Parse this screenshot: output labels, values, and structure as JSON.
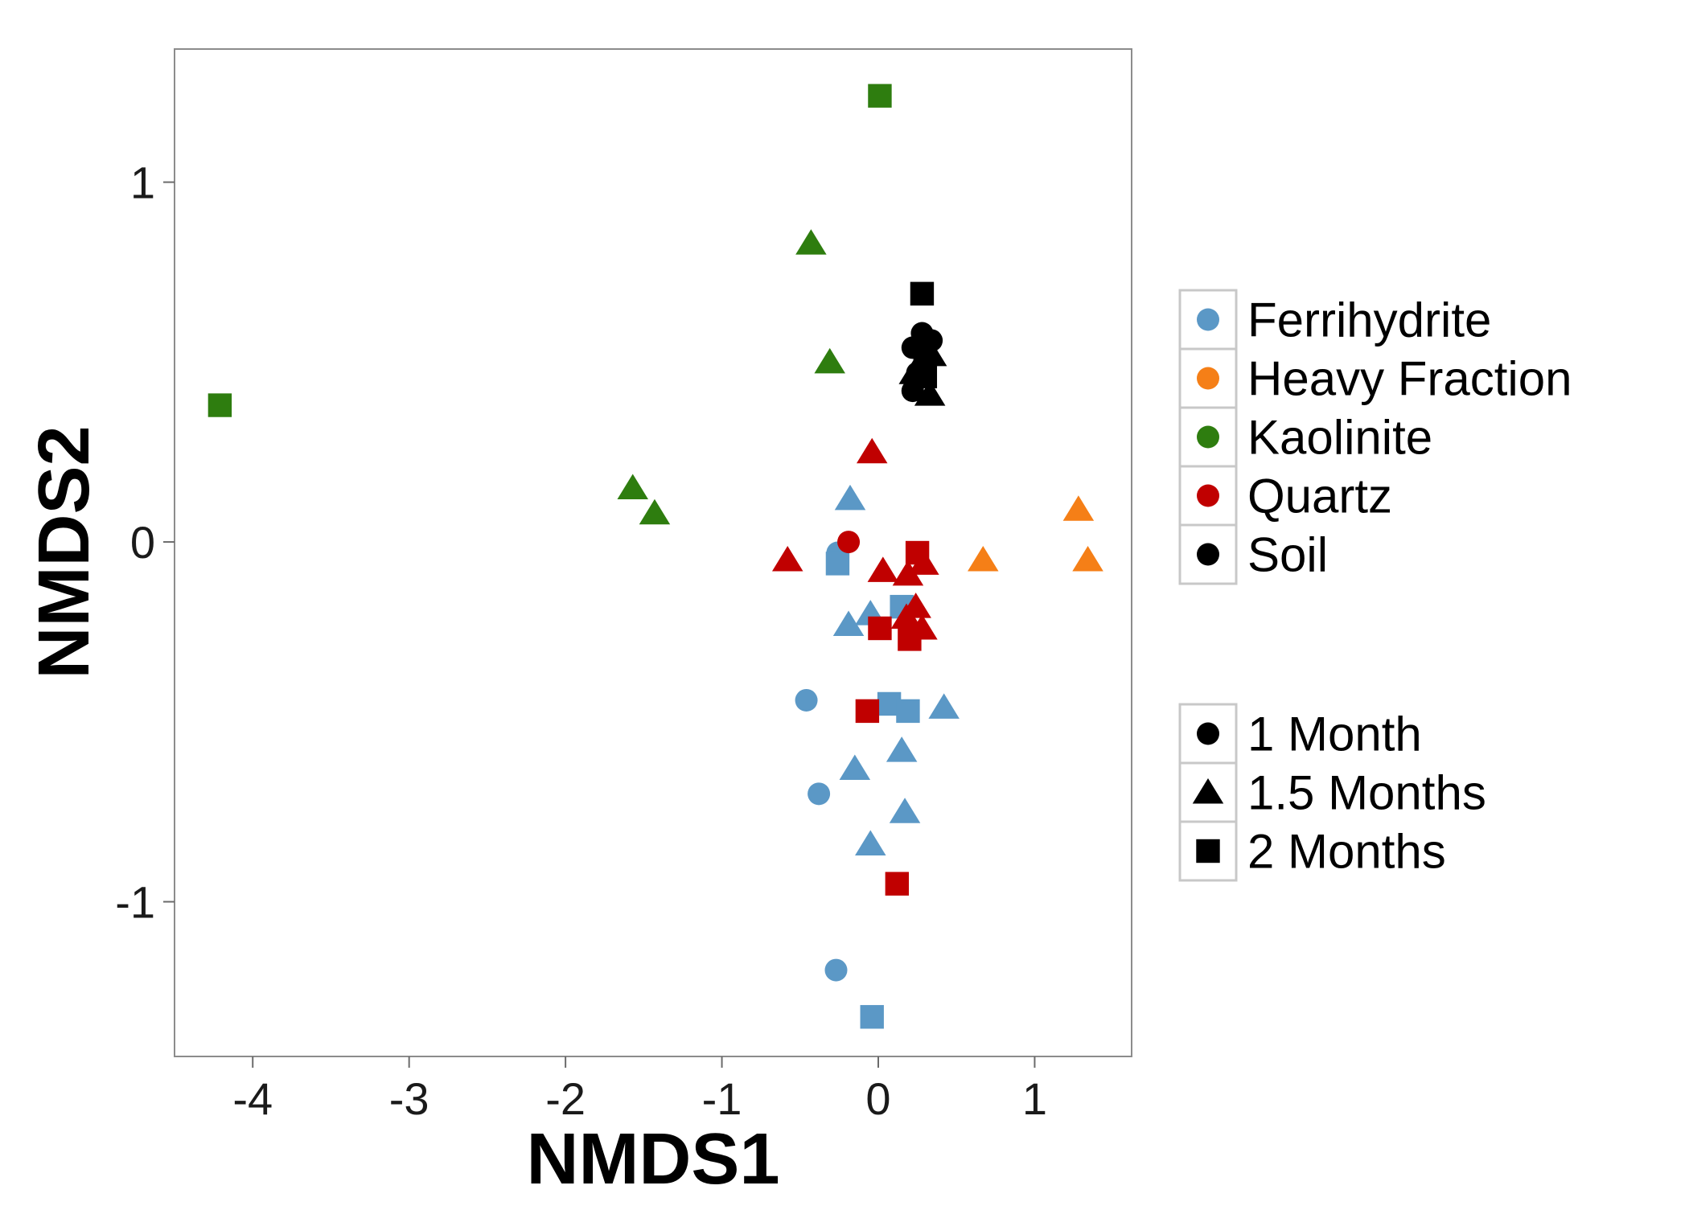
{
  "chart_data": {
    "type": "scatter",
    "xlabel": "NMDS1",
    "ylabel": "NMDS2",
    "xlim": [
      -4.5,
      1.62
    ],
    "ylim": [
      -1.43,
      1.37
    ],
    "xticks": [
      -4,
      -3,
      -2,
      -1,
      0,
      1
    ],
    "yticks": [
      -1,
      0,
      1
    ],
    "xtick_labels": [
      "-4",
      "-3",
      "-2",
      "-1",
      "0",
      "1"
    ],
    "ytick_labels": [
      "-1",
      "0",
      "1"
    ],
    "grid": false,
    "legend_placement": "right",
    "colors": {
      "Ferrihydrite": "#5b98c6",
      "Heavy Fraction": "#f57f17",
      "Kaolinite": "#2e7d0f",
      "Quartz": "#c00000",
      "Soil": "#000000"
    },
    "legends": [
      {
        "items": [
          {
            "label": "Ferrihydrite",
            "shape": "circle",
            "color": "#5b98c6"
          },
          {
            "label": "Heavy Fraction",
            "shape": "circle",
            "color": "#f57f17"
          },
          {
            "label": "Kaolinite",
            "shape": "circle",
            "color": "#2e7d0f"
          },
          {
            "label": "Quartz",
            "shape": "circle",
            "color": "#c00000"
          },
          {
            "label": "Soil",
            "shape": "circle",
            "color": "#000000"
          }
        ]
      },
      {
        "items": [
          {
            "label": "1 Month",
            "shape": "circle",
            "color": "#000000"
          },
          {
            "label": "1.5 Months",
            "shape": "triangle",
            "color": "#000000"
          },
          {
            "label": "2 Months",
            "shape": "square",
            "color": "#000000"
          }
        ]
      }
    ],
    "series": [
      {
        "group": "Ferrihydrite",
        "points": [
          {
            "x": -0.26,
            "y": -0.03,
            "time": "1 Month"
          },
          {
            "x": -0.46,
            "y": -0.44,
            "time": "1 Month"
          },
          {
            "x": -0.38,
            "y": -0.7,
            "time": "1 Month"
          },
          {
            "x": -0.27,
            "y": -1.19,
            "time": "1 Month"
          },
          {
            "x": -0.18,
            "y": 0.12,
            "time": "1.5 Months"
          },
          {
            "x": -0.19,
            "y": -0.23,
            "time": "1.5 Months"
          },
          {
            "x": -0.05,
            "y": -0.2,
            "time": "1.5 Months"
          },
          {
            "x": 0.42,
            "y": -0.46,
            "time": "1.5 Months"
          },
          {
            "x": -0.15,
            "y": -0.63,
            "time": "1.5 Months"
          },
          {
            "x": 0.15,
            "y": -0.58,
            "time": "1.5 Months"
          },
          {
            "x": 0.17,
            "y": -0.75,
            "time": "1.5 Months"
          },
          {
            "x": -0.05,
            "y": -0.84,
            "time": "1.5 Months"
          },
          {
            "x": -0.26,
            "y": -0.06,
            "time": "2 Months"
          },
          {
            "x": 0.15,
            "y": -0.18,
            "time": "2 Months"
          },
          {
            "x": 0.07,
            "y": -0.45,
            "time": "2 Months"
          },
          {
            "x": 0.19,
            "y": -0.47,
            "time": "2 Months"
          },
          {
            "x": -0.04,
            "y": -1.32,
            "time": "2 Months"
          }
        ]
      },
      {
        "group": "Heavy Fraction",
        "points": [
          {
            "x": 1.28,
            "y": 0.09,
            "time": "1.5 Months"
          },
          {
            "x": 0.67,
            "y": -0.05,
            "time": "1.5 Months"
          },
          {
            "x": 1.34,
            "y": -0.05,
            "time": "1.5 Months"
          }
        ]
      },
      {
        "group": "Kaolinite",
        "points": [
          {
            "x": -0.43,
            "y": 0.83,
            "time": "1.5 Months"
          },
          {
            "x": -0.31,
            "y": 0.5,
            "time": "1.5 Months"
          },
          {
            "x": -1.57,
            "y": 0.15,
            "time": "1.5 Months"
          },
          {
            "x": -1.43,
            "y": 0.08,
            "time": "1.5 Months"
          },
          {
            "x": 0.01,
            "y": 1.24,
            "time": "2 Months"
          },
          {
            "x": -4.21,
            "y": 0.38,
            "time": "2 Months"
          }
        ]
      },
      {
        "group": "Quartz",
        "points": [
          {
            "x": -0.19,
            "y": 0.0,
            "time": "1 Month"
          },
          {
            "x": -0.04,
            "y": 0.25,
            "time": "1.5 Months"
          },
          {
            "x": -0.58,
            "y": -0.05,
            "time": "1.5 Months"
          },
          {
            "x": 0.03,
            "y": -0.08,
            "time": "1.5 Months"
          },
          {
            "x": 0.19,
            "y": -0.09,
            "time": "1.5 Months"
          },
          {
            "x": 0.29,
            "y": -0.06,
            "time": "1.5 Months"
          },
          {
            "x": 0.24,
            "y": -0.18,
            "time": "1.5 Months"
          },
          {
            "x": 0.18,
            "y": -0.21,
            "time": "1.5 Months"
          },
          {
            "x": 0.28,
            "y": -0.24,
            "time": "1.5 Months"
          },
          {
            "x": 0.25,
            "y": -0.03,
            "time": "2 Months"
          },
          {
            "x": 0.01,
            "y": -0.24,
            "time": "2 Months"
          },
          {
            "x": 0.2,
            "y": -0.27,
            "time": "2 Months"
          },
          {
            "x": -0.07,
            "y": -0.47,
            "time": "2 Months"
          },
          {
            "x": 0.12,
            "y": -0.95,
            "time": "2 Months"
          }
        ]
      },
      {
        "group": "Soil",
        "points": [
          {
            "x": 0.28,
            "y": 0.58,
            "time": "1 Month"
          },
          {
            "x": 0.34,
            "y": 0.56,
            "time": "1 Month"
          },
          {
            "x": 0.22,
            "y": 0.54,
            "time": "1 Month"
          },
          {
            "x": 0.3,
            "y": 0.5,
            "time": "1 Month"
          },
          {
            "x": 0.25,
            "y": 0.47,
            "time": "1 Month"
          },
          {
            "x": 0.22,
            "y": 0.42,
            "time": "1 Month"
          },
          {
            "x": 0.34,
            "y": 0.52,
            "time": "1.5 Months"
          },
          {
            "x": 0.23,
            "y": 0.47,
            "time": "1.5 Months"
          },
          {
            "x": 0.33,
            "y": 0.41,
            "time": "1.5 Months"
          },
          {
            "x": 0.28,
            "y": 0.69,
            "time": "2 Months"
          },
          {
            "x": 0.3,
            "y": 0.52,
            "time": "2 Months"
          },
          {
            "x": 0.3,
            "y": 0.46,
            "time": "2 Months"
          }
        ]
      }
    ]
  }
}
